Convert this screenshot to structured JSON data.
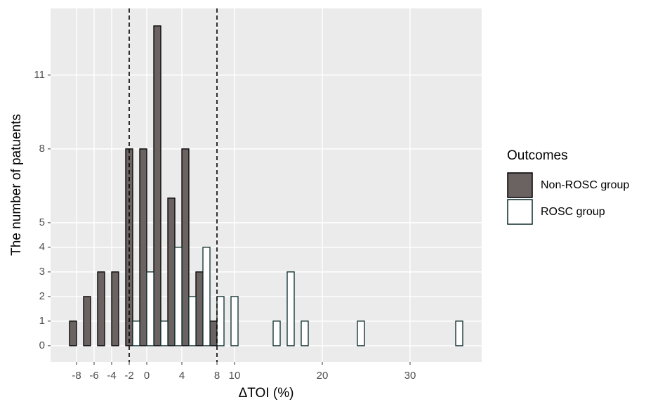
{
  "chart_data": {
    "type": "bar",
    "x_label": "ΔTOI (%)",
    "y_label": "The number of patuents",
    "legend_title": "Outcomes",
    "legend_position": "right",
    "x": [
      -8,
      -6.4,
      -4.8,
      -3.2,
      -1.6,
      0,
      1.6,
      3.2,
      4.8,
      6.4,
      8,
      9.6,
      11.2,
      12.8,
      14.4,
      16,
      17.6,
      19.2,
      20.8,
      22.4,
      24,
      25.6,
      27.2,
      28.8,
      30.4,
      32,
      33.6,
      35.2
    ],
    "series": [
      {
        "name": "Non-ROSC group",
        "color": "#6b6262",
        "values": [
          1,
          2,
          3,
          3,
          8,
          8,
          13,
          6,
          8,
          3,
          1,
          0,
          0,
          0,
          0,
          0,
          0,
          0,
          0,
          0,
          0,
          0,
          0,
          0,
          0,
          0,
          0,
          0
        ]
      },
      {
        "name": "ROSC group",
        "color": "#ffffff",
        "values": [
          0,
          0,
          0,
          0,
          1,
          3,
          1,
          4,
          2,
          4,
          2,
          2,
          0,
          0,
          1,
          3,
          1,
          0,
          0,
          0,
          1,
          0,
          0,
          0,
          0,
          0,
          0,
          1
        ]
      }
    ],
    "bar_width": 0.8,
    "xlim": [
      -10.96,
      38.16
    ],
    "ylim": [
      -0.66,
      13.71
    ],
    "xticks": [
      -8,
      -6,
      -4,
      -2,
      0,
      4,
      8,
      10,
      20,
      30
    ],
    "yticks": [
      0,
      1,
      2,
      3,
      4,
      5,
      8,
      11
    ],
    "vlines": [
      -2,
      8
    ],
    "grid": true
  }
}
